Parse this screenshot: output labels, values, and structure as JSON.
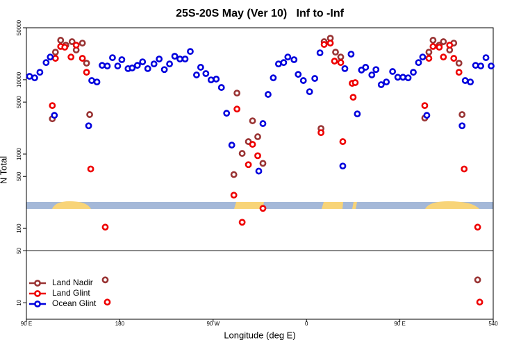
{
  "chart_data": {
    "type": "scatter",
    "title": "25S-20S May (Ver 10)   Inf to -Inf",
    "xlabel": "Longitude (deg E)",
    "ylabel": "N Total",
    "log_y": true,
    "ylim": [
      6,
      50000
    ],
    "yticks": [
      10,
      50,
      100,
      500,
      1000,
      5000,
      10000,
      50000
    ],
    "xlim": [
      90,
      540
    ],
    "xticks": [
      {
        "value": 90,
        "label": "90 E"
      },
      180,
      {
        "value": 270,
        "label": "90 W"
      },
      {
        "value": 360,
        "label": "0"
      },
      {
        "value": 450,
        "label": "90 E"
      },
      540
    ],
    "reference_line": 50,
    "legend": "bottom-left",
    "series": [
      {
        "name": "Land Nadir",
        "color": "#993333",
        "x": [
          115,
          118,
          123,
          128,
          134,
          138,
          144,
          148,
          151,
          166,
          290,
          293,
          298,
          304,
          308,
          313,
          318,
          374,
          377,
          383,
          388,
          393,
          474,
          478,
          482,
          488,
          492,
          498,
          502,
          507,
          510,
          525
        ],
        "values": [
          2980,
          23500,
          34000,
          29200,
          32500,
          25100,
          31100,
          16700,
          3400,
          20.3,
          530,
          6610,
          1020,
          1470,
          2800,
          1710,
          750,
          2210,
          32500,
          36200,
          23500,
          20200,
          3050,
          23500,
          34000,
          29200,
          32500,
          25100,
          31100,
          16700,
          3400,
          20.3
        ]
      },
      {
        "name": "Land Glint",
        "color": "#ee0000",
        "x": [
          115,
          118,
          123,
          127,
          133,
          138,
          144,
          148,
          152,
          166,
          168,
          290,
          293,
          298,
          304,
          308,
          313,
          318,
          374,
          377,
          383,
          387,
          393,
          395,
          404,
          405,
          407,
          474,
          478,
          482,
          488,
          492,
          498,
          502,
          507,
          512,
          525,
          527
        ],
        "values": [
          4490,
          19400,
          28000,
          27400,
          20200,
          29200,
          19400,
          12600,
          630,
          104,
          10.2,
          280,
          4030,
          121,
          720,
          1350,
          950,
          186,
          1940,
          29800,
          31100,
          17800,
          17000,
          1470,
          8940,
          5810,
          9140,
          4490,
          19400,
          28000,
          27400,
          20200,
          29200,
          19400,
          12600,
          630,
          104,
          10.2
        ]
      },
      {
        "name": "Ocean Glint",
        "color": "#0000dd",
        "x": [
          93,
          98,
          103,
          109,
          113,
          117,
          150,
          153,
          158,
          163,
          168,
          173,
          178,
          182,
          188,
          192,
          197,
          202,
          207,
          213,
          218,
          223,
          228,
          233,
          238,
          243,
          248,
          254,
          258,
          263,
          268,
          273,
          278,
          283,
          288,
          314,
          318,
          323,
          328,
          333,
          338,
          342,
          348,
          352,
          357,
          363,
          368,
          373,
          395,
          397,
          403,
          409,
          413,
          417,
          423,
          427,
          432,
          437,
          443,
          448,
          453,
          458,
          463,
          468,
          472,
          476,
          510,
          513,
          518,
          523,
          528,
          533,
          538
        ],
        "values": [
          11100,
          10600,
          12600,
          17000,
          20200,
          3320,
          2400,
          9750,
          9330,
          15600,
          15300,
          19800,
          15300,
          18600,
          14100,
          14400,
          15600,
          17400,
          14100,
          16300,
          19000,
          13700,
          16300,
          20700,
          19000,
          19000,
          24000,
          11600,
          14700,
          12100,
          9950,
          10200,
          7860,
          3540,
          1320,
          590,
          2570,
          6340,
          10600,
          16300,
          17000,
          20200,
          18600,
          11800,
          9750,
          6900,
          10400,
          23000,
          690,
          14100,
          22100,
          3470,
          13500,
          14700,
          11600,
          13700,
          8570,
          9330,
          12900,
          10800,
          10800,
          10600,
          12600,
          17000,
          20200,
          3320,
          2400,
          9750,
          9330,
          15600,
          15300,
          19800,
          15300
        ]
      }
    ]
  }
}
